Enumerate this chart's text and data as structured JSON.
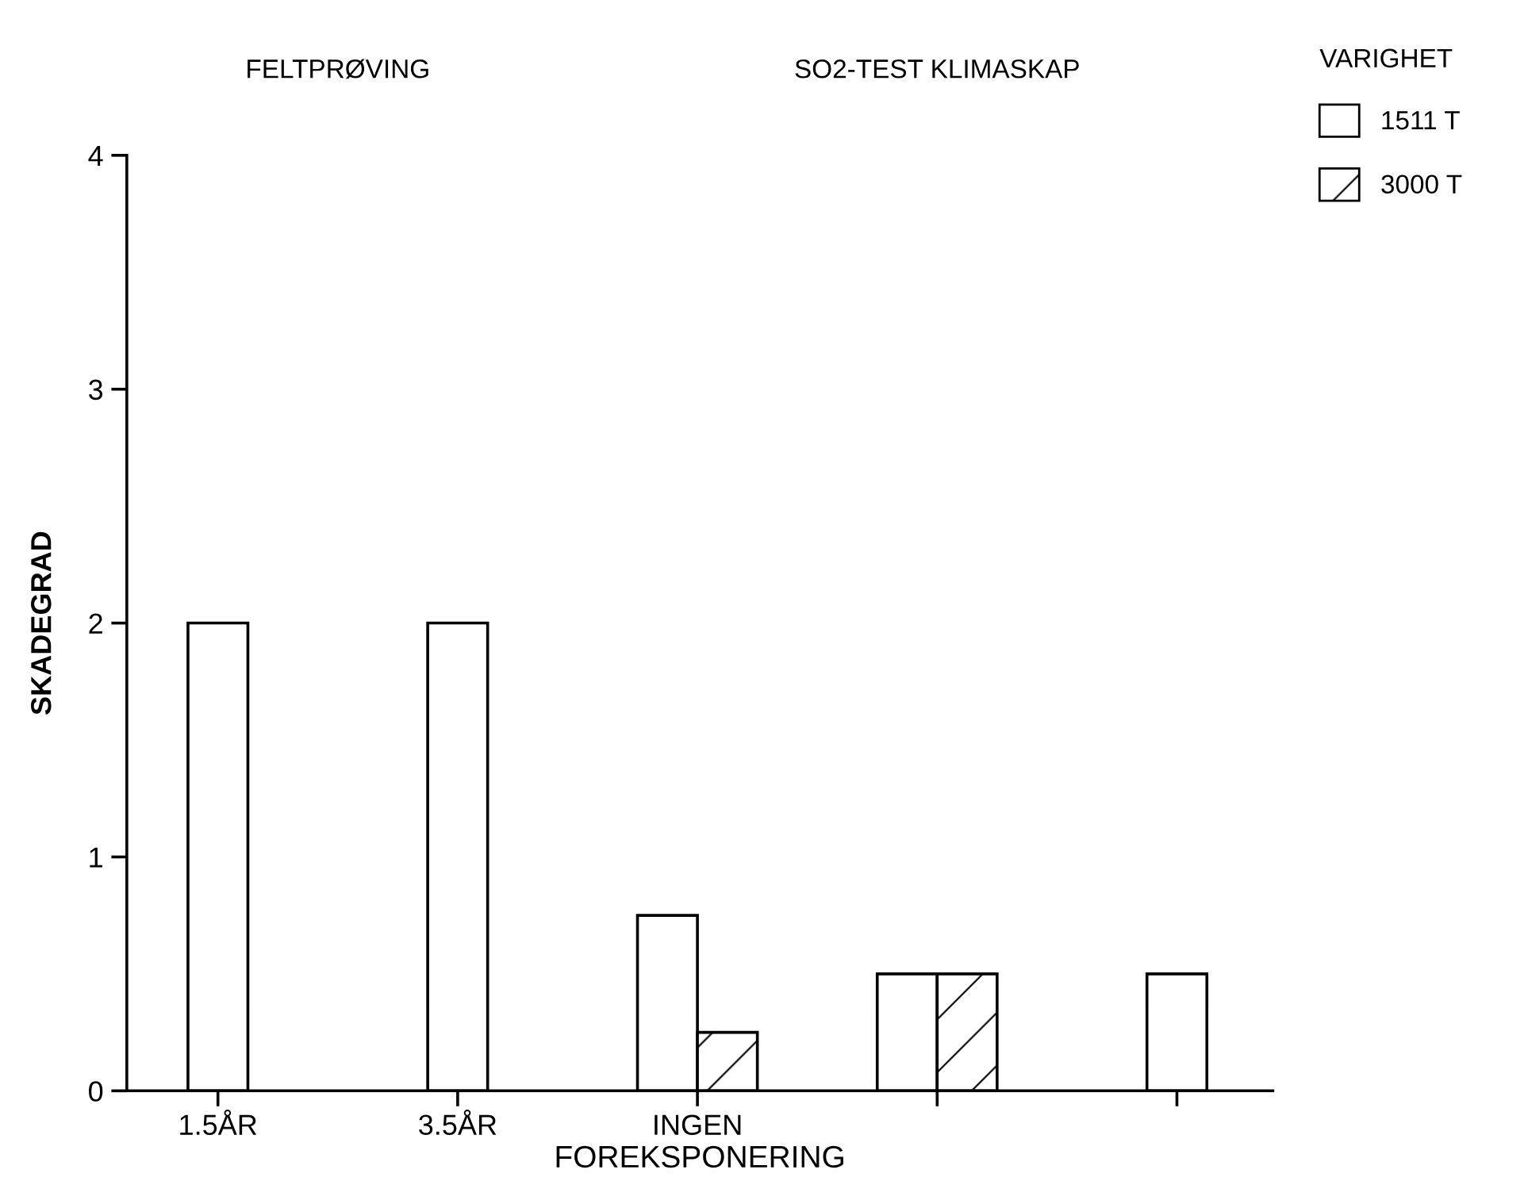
{
  "chart_data": {
    "type": "bar",
    "xlabel": "FOREKSPONERING",
    "ylabel": "SKADEGRAD",
    "legend_title": "VARIGHET",
    "annotations": [
      "FELTPRØVING",
      "SO2-TEST KLIMASKAP"
    ],
    "categories": [
      "1.5ÅR",
      "3.5ÅR",
      "INGEN",
      null,
      null
    ],
    "series": [
      {
        "name": "1511 T",
        "color": "#ffffff",
        "values": [
          2,
          2,
          0.75,
          0.5,
          0.5
        ]
      },
      {
        "name": "3000 T",
        "color": "#ffffff",
        "values": [
          null,
          null,
          0.25,
          0.5,
          null
        ]
      }
    ],
    "ylim": [
      0,
      4
    ],
    "yticks": [
      0,
      1,
      2,
      3,
      4
    ],
    "grid": false,
    "legend": "top right"
  }
}
